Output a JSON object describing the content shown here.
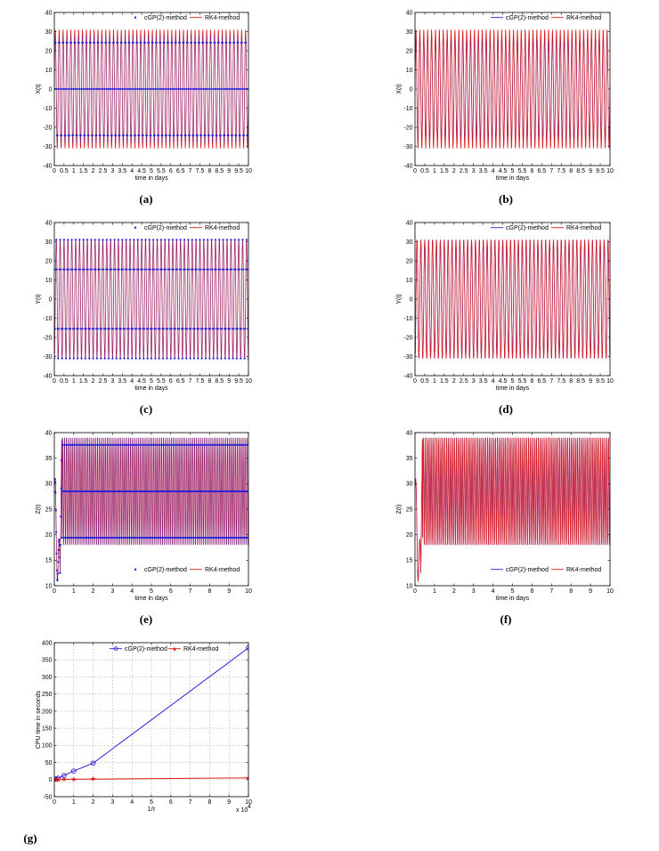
{
  "colors": {
    "cgp": "#2a1fd6",
    "rk4": "#e01a1a",
    "axis": "#000000",
    "grid": "#9a9a9a"
  },
  "chart_data": [
    {
      "id": "a",
      "type": "line",
      "caption": "(a)",
      "xlabel": "time in days",
      "ylabel": "X(t)",
      "xlim": [
        0,
        10
      ],
      "ylim": [
        -40,
        40
      ],
      "xticks": [
        "0",
        "0.5",
        "1",
        "1.5",
        "2",
        "2.5",
        "3",
        "3.5",
        "4",
        "4.5",
        "5",
        "5.5",
        "6",
        "6.5",
        "7",
        "7.5",
        "8",
        "8.5",
        "9",
        "9.5",
        "10"
      ],
      "yticks": [
        "-40",
        "-30",
        "-20",
        "-10",
        "0",
        "10",
        "20",
        "30",
        "40"
      ],
      "legend": "top-right",
      "series": [
        {
          "name": "cGP(2)-method",
          "style": "markers",
          "signal": {
            "mean": 0,
            "amp": 28,
            "period": 0.2,
            "phase": 0.0
          }
        },
        {
          "name": "RK4-method",
          "style": "line",
          "signal": {
            "mean": 0,
            "amp": 31,
            "period": 0.2,
            "phase": 0.0
          }
        }
      ]
    },
    {
      "id": "b",
      "type": "line",
      "caption": "(b)",
      "xlabel": "time in days",
      "ylabel": "X(t)",
      "xlim": [
        0,
        10
      ],
      "ylim": [
        -40,
        40
      ],
      "xticks": [
        "0",
        "0.5",
        "1",
        "1.5",
        "2",
        "2.5",
        "3",
        "3.5",
        "4",
        "4.5",
        "5",
        "5.5",
        "6",
        "6.5",
        "7",
        "7.5",
        "8",
        "8.5",
        "9",
        "9.5",
        "10"
      ],
      "yticks": [
        "-40",
        "-30",
        "-20",
        "-10",
        "0",
        "10",
        "20",
        "30",
        "40"
      ],
      "legend": "top-right",
      "series": [
        {
          "name": "cGP(2)-method",
          "style": "line",
          "signal": {
            "mean": 0,
            "amp": 27,
            "period": 0.2,
            "phase": 0.0
          }
        },
        {
          "name": "RK4-method",
          "style": "line",
          "signal": {
            "mean": 0,
            "amp": 31,
            "period": 0.2,
            "phase": 0.0
          }
        }
      ]
    },
    {
      "id": "c",
      "type": "line",
      "caption": "(c)",
      "xlabel": "time in days",
      "ylabel": "Y(t)",
      "xlim": [
        0,
        10
      ],
      "ylim": [
        -40,
        40
      ],
      "xticks": [
        "0",
        "0.5",
        "1",
        "1.5",
        "2",
        "2.5",
        "3",
        "3.5",
        "4",
        "4.5",
        "5",
        "5.5",
        "6",
        "6.5",
        "7",
        "7.5",
        "8",
        "8.5",
        "9",
        "9.5",
        "10"
      ],
      "yticks": [
        "-40",
        "-30",
        "-20",
        "-10",
        "0",
        "10",
        "20",
        "30",
        "40"
      ],
      "legend": "top-right",
      "series": [
        {
          "name": "cGP(2)-method",
          "style": "markers",
          "signal": {
            "mean": 0,
            "amp": 31,
            "period": 0.2,
            "phase": 0.05
          }
        },
        {
          "name": "RK4-method",
          "style": "line",
          "signal": {
            "mean": 0,
            "amp": 31,
            "period": 0.2,
            "phase": 0.05
          }
        }
      ]
    },
    {
      "id": "d",
      "type": "line",
      "caption": "(d)",
      "xlabel": "time in days",
      "ylabel": "Y(t)",
      "xlim": [
        0,
        10
      ],
      "ylim": [
        -40,
        40
      ],
      "xticks": [
        "0",
        "0.5",
        "1",
        "1.5",
        "2",
        "2.5",
        "3",
        "3.5",
        "4",
        "4.5",
        "5",
        "5.5",
        "6",
        "6.5",
        "7",
        "7.5",
        "8",
        "8.5",
        "9",
        "9.5",
        "10"
      ],
      "yticks": [
        "-40",
        "-30",
        "-20",
        "-10",
        "0",
        "10",
        "20",
        "30",
        "40"
      ],
      "legend": "top-right",
      "series": [
        {
          "name": "cGP(2)-method",
          "style": "line",
          "signal": {
            "mean": 0,
            "amp": 31,
            "period": 0.2,
            "phase": 0.05
          }
        },
        {
          "name": "RK4-method",
          "style": "line",
          "signal": {
            "mean": 0,
            "amp": 31,
            "period": 0.2,
            "phase": 0.05
          }
        }
      ]
    },
    {
      "id": "e",
      "type": "line",
      "caption": "(e)",
      "xlabel": "time in days",
      "ylabel": "Z(t)",
      "xlim": [
        0,
        10
      ],
      "ylim": [
        10,
        40
      ],
      "xticks": [
        "0",
        "1",
        "2",
        "3",
        "4",
        "5",
        "6",
        "7",
        "8",
        "9",
        "10"
      ],
      "yticks": [
        "10",
        "15",
        "20",
        "25",
        "30",
        "35",
        "40"
      ],
      "legend": "bottom-right",
      "series": [
        {
          "name": "cGP(2)-method",
          "style": "markers",
          "signal": {
            "mean": 28.5,
            "amp": 10.5,
            "period": 0.1,
            "phase": 0.0,
            "dip_t": 0.3,
            "dip_y": 12.5
          }
        },
        {
          "name": "RK4-method",
          "style": "line",
          "signal": {
            "mean": 28.5,
            "amp": 10.5,
            "period": 0.1,
            "phase": 0.0,
            "dip_t": 0.3,
            "dip_y": 12.5
          }
        }
      ]
    },
    {
      "id": "f",
      "type": "line",
      "caption": "(f)",
      "xlabel": "time in days",
      "ylabel": "Z(t)",
      "xlim": [
        0,
        10
      ],
      "ylim": [
        10,
        40
      ],
      "xticks": [
        "0",
        "1",
        "2",
        "3",
        "4",
        "5",
        "6",
        "7",
        "8",
        "9",
        "10"
      ],
      "yticks": [
        "10",
        "15",
        "20",
        "25",
        "30",
        "35",
        "40"
      ],
      "legend": "bottom-right",
      "series": [
        {
          "name": "cGP(2)-method",
          "style": "line",
          "signal": {
            "mean": 28.5,
            "amp": 10.5,
            "period": 0.1,
            "phase": 0.0,
            "dip_t": 0.3,
            "dip_y": 12.5
          }
        },
        {
          "name": "RK4-method",
          "style": "line",
          "signal": {
            "mean": 28.5,
            "amp": 10.5,
            "period": 0.1,
            "phase": 0.0,
            "dip_t": 0.3,
            "dip_y": 12.5
          }
        }
      ]
    },
    {
      "id": "g",
      "type": "line",
      "caption": "(g)",
      "xlabel": "1/τ",
      "ylabel": "CPU time in seconds",
      "xmultiplier": "x 10",
      "xmultiplier_exp": "4",
      "xlim": [
        0,
        10
      ],
      "ylim": [
        -50,
        400
      ],
      "xticks": [
        "0",
        "1",
        "2",
        "3",
        "4",
        "5",
        "6",
        "7",
        "8",
        "9",
        "10"
      ],
      "yticks": [
        "-50",
        "0",
        "50",
        "100",
        "150",
        "200",
        "250",
        "300",
        "350",
        "400"
      ],
      "grid": true,
      "legend": "top",
      "series": [
        {
          "name": "cGP(2)-method",
          "style": "line-circle",
          "x": [
            0.05,
            0.1,
            0.2,
            0.5,
            1,
            2,
            10
          ],
          "y": [
            1,
            2,
            4,
            12,
            25,
            48,
            385
          ]
        },
        {
          "name": "RK4-method",
          "style": "line-star",
          "x": [
            0.05,
            0.1,
            0.2,
            0.5,
            1,
            2,
            10
          ],
          "y": [
            0,
            0,
            0,
            0.5,
            1,
            1.5,
            5
          ]
        }
      ]
    }
  ]
}
